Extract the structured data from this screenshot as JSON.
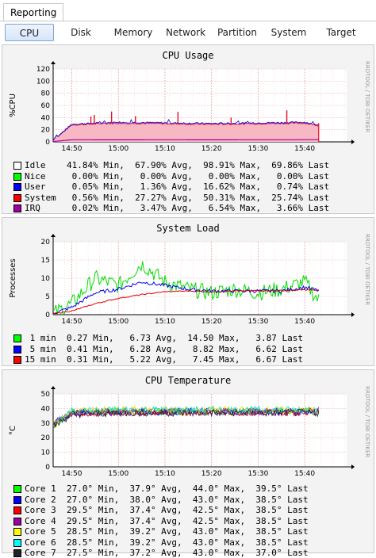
{
  "header": {
    "reporting_tab": "Reporting"
  },
  "subnav": [
    "CPU",
    "Disk",
    "Memory",
    "Network",
    "Partition",
    "System",
    "Target"
  ],
  "active_tab": "CPU",
  "watermark": "RRDTOOL / TOBI OETIKER",
  "time_labels": [
    "14:50",
    "15:00",
    "15:10",
    "15:20",
    "15:30",
    "15:40"
  ],
  "panels": {
    "cpu": {
      "title": "CPU Usage",
      "ylabel": "%CPU",
      "yticks": [
        "0",
        "20",
        "40",
        "60",
        "80",
        "100",
        "120"
      ],
      "legend": [
        {
          "color": "#ffffff",
          "text": "Idle    41.84% Min,  67.90% Avg,  98.91% Max,  69.86% Last"
        },
        {
          "color": "#00ff00",
          "text": "Nice     0.00% Min,   0.00% Avg,   0.00% Max,   0.00% Last"
        },
        {
          "color": "#0000ff",
          "text": "User     0.05% Min,   1.36% Avg,  16.62% Max,   0.74% Last"
        },
        {
          "color": "#ff0000",
          "text": "System   0.56% Min,  27.27% Avg,  50.31% Max,  25.74% Last"
        },
        {
          "color": "#a000a0",
          "text": "IRQ      0.02% Min,   3.47% Avg,   6.54% Max,   3.66% Last"
        }
      ]
    },
    "load": {
      "title": "System Load",
      "ylabel": "Processes",
      "yticks": [
        "0",
        "5",
        "10",
        "15",
        "20"
      ],
      "legend": [
        {
          "color": "#00ff00",
          "text": " 1 min  0.27 Min,   6.73 Avg,  14.50 Max,   3.87 Last"
        },
        {
          "color": "#0000ff",
          "text": " 5 min  0.41 Min,   6.28 Avg,   8.82 Max,   6.62 Last"
        },
        {
          "color": "#ff0000",
          "text": "15 min  0.31 Min,   5.22 Avg,   7.45 Max,   6.67 Last"
        }
      ]
    },
    "temp": {
      "title": "CPU Temperature",
      "ylabel": "°C",
      "yticks": [
        "0",
        "10",
        "20",
        "30",
        "40",
        "50"
      ],
      "legend": [
        {
          "color": "#00ff00",
          "text": "Core 1  27.0° Min,  37.9° Avg,  44.0° Max,  39.5° Last"
        },
        {
          "color": "#0000ff",
          "text": "Core 2  27.0° Min,  38.0° Avg,  43.0° Max,  38.5° Last"
        },
        {
          "color": "#ff0000",
          "text": "Core 3  29.5° Min,  37.4° Avg,  42.5° Max,  38.5° Last"
        },
        {
          "color": "#a000a0",
          "text": "Core 4  29.5° Min,  37.4° Avg,  42.5° Max,  38.5° Last"
        },
        {
          "color": "#ffff00",
          "text": "Core 5  28.5° Min,  39.2° Avg,  43.0° Max,  38.5° Last"
        },
        {
          "color": "#00ffff",
          "text": "Core 6  28.5° Min,  39.2° Avg,  43.0° Max,  38.5° Last"
        },
        {
          "color": "#222222",
          "text": "Core 7  27.5° Min,  37.2° Avg,  43.0° Max,  37.0° Last"
        }
      ]
    }
  },
  "chart_data": [
    {
      "type": "area",
      "title": "CPU Usage",
      "ylabel": "%CPU",
      "ylim": [
        0,
        120
      ],
      "x": [
        "14:46",
        "14:50",
        "15:00",
        "15:10",
        "15:20",
        "15:30",
        "15:40",
        "15:43"
      ],
      "series": [
        {
          "name": "System",
          "values": [
            2,
            28,
            31,
            30,
            29,
            30,
            31,
            27
          ]
        },
        {
          "name": "User",
          "values": [
            0.3,
            1.2,
            1.5,
            1.4,
            1.3,
            1.3,
            1.4,
            0.7
          ]
        },
        {
          "name": "IRQ",
          "values": [
            0.5,
            3.5,
            3.4,
            3.5,
            3.4,
            3.5,
            3.6,
            3.7
          ]
        }
      ]
    },
    {
      "type": "line",
      "title": "System Load",
      "ylabel": "Processes",
      "ylim": [
        0,
        20
      ],
      "x": [
        "14:46",
        "14:50",
        "14:55",
        "15:00",
        "15:05",
        "15:10",
        "15:15",
        "15:20",
        "15:25",
        "15:30",
        "15:35",
        "15:40",
        "15:43"
      ],
      "series": [
        {
          "name": "1 min",
          "values": [
            0.3,
            3,
            10,
            8,
            14,
            9,
            7,
            6,
            7,
            6,
            7,
            9,
            3.9
          ]
        },
        {
          "name": "5 min",
          "values": [
            0.4,
            2,
            6,
            7,
            9,
            8,
            7,
            6.5,
            6.5,
            6.5,
            6.5,
            7.5,
            6.6
          ]
        },
        {
          "name": "15 min",
          "values": [
            0.3,
            1,
            3,
            4.5,
            5.5,
            6.3,
            6.5,
            6.3,
            6.5,
            6.6,
            6.6,
            6.8,
            6.7
          ]
        }
      ]
    },
    {
      "type": "line",
      "title": "CPU Temperature",
      "ylabel": "°C",
      "ylim": [
        0,
        50
      ],
      "x": [
        "14:46",
        "14:50",
        "15:00",
        "15:10",
        "15:20",
        "15:30",
        "15:40",
        "15:43"
      ],
      "series": [
        {
          "name": "Core 1",
          "values": [
            28,
            37,
            38,
            38,
            38,
            38,
            38,
            39.5
          ]
        },
        {
          "name": "Core 2",
          "values": [
            28,
            37,
            38,
            38,
            38,
            38,
            38,
            38.5
          ]
        },
        {
          "name": "Core 3",
          "values": [
            29.5,
            36.5,
            37.5,
            37.5,
            37.5,
            37.5,
            37.5,
            38.5
          ]
        },
        {
          "name": "Core 4",
          "values": [
            29.5,
            36.5,
            37.5,
            37.5,
            37.5,
            37.5,
            37.5,
            38.5
          ]
        },
        {
          "name": "Core 5",
          "values": [
            28.5,
            38,
            39,
            39,
            39,
            39,
            39,
            38.5
          ]
        },
        {
          "name": "Core 6",
          "values": [
            28.5,
            38,
            39,
            39,
            39,
            39,
            39,
            38.5
          ]
        },
        {
          "name": "Core 7",
          "values": [
            27.5,
            36,
            37,
            37,
            37,
            37,
            37,
            37
          ]
        }
      ]
    }
  ]
}
